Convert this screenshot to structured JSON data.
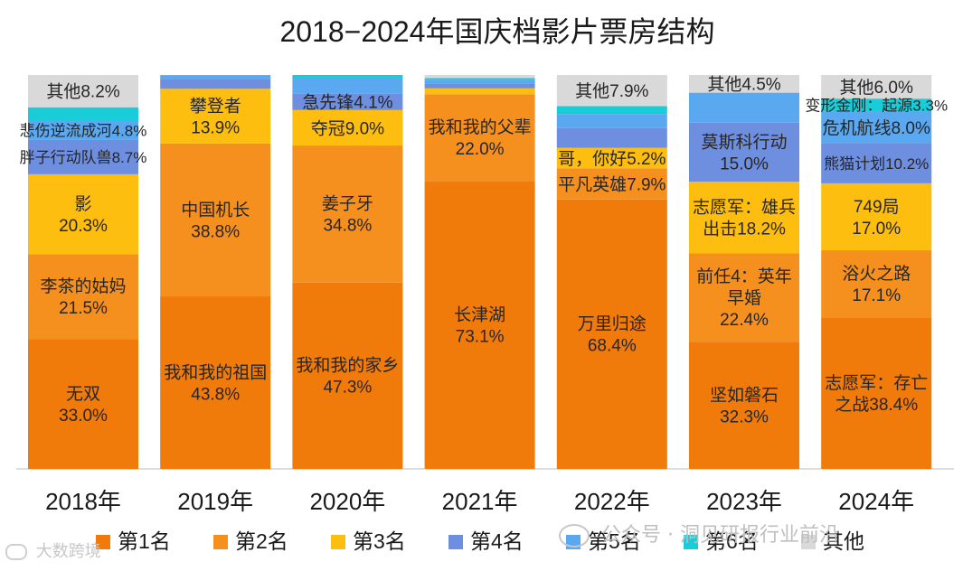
{
  "chart_data": {
    "type": "bar",
    "stacked": true,
    "title": "2018−2024年国庆档影片票房结构",
    "xlabel": "",
    "ylabel": "",
    "ylim": [
      0,
      100
    ],
    "categories": [
      "2018年",
      "2019年",
      "2020年",
      "2021年",
      "2022年",
      "2023年",
      "2024年"
    ],
    "legend_position": "bottom",
    "series": [
      {
        "name": "第1名",
        "color": "#F07A0A",
        "values": [
          33.0,
          43.8,
          47.3,
          73.1,
          68.4,
          32.3,
          38.4
        ]
      },
      {
        "name": "第2名",
        "color": "#F5901E",
        "values": [
          21.5,
          38.8,
          34.8,
          22.0,
          7.9,
          22.4,
          17.1
        ]
      },
      {
        "name": "第3名",
        "color": "#FDBE10",
        "values": [
          20.3,
          13.9,
          9.0,
          1.5,
          5.2,
          18.2,
          17.0
        ]
      },
      {
        "name": "第4名",
        "color": "#6E8EDF",
        "values": [
          8.7,
          2.5,
          4.1,
          1.2,
          5.0,
          15.0,
          10.2
        ]
      },
      {
        "name": "第5名",
        "color": "#5AA9F0",
        "values": [
          4.8,
          0.8,
          4.0,
          1.0,
          3.6,
          7.6,
          8.0
        ]
      },
      {
        "name": "第6名",
        "color": "#18CCD8",
        "values": [
          3.5,
          0.2,
          0.8,
          0.4,
          2.0,
          0.0,
          3.3
        ]
      },
      {
        "name": "其他",
        "color": "#D9D9D9",
        "values": [
          8.2,
          0.0,
          0.0,
          0.8,
          7.9,
          4.5,
          6.0
        ]
      }
    ],
    "data_labels": [
      [
        [
          "无双",
          "33.0%"
        ],
        [
          "李茶的姑妈",
          "21.5%"
        ],
        [
          "影",
          "20.3%"
        ],
        [
          "胖子行动队兽8.7%"
        ],
        [
          "悲伤逆流成河4.8%"
        ],
        [],
        [
          "其他8.2%"
        ]
      ],
      [
        [
          "我和我的祖国",
          "43.8%"
        ],
        [
          "中国机长",
          "38.8%"
        ],
        [
          "攀登者",
          "13.9%"
        ],
        [],
        [],
        [],
        []
      ],
      [
        [
          "我和我的家乡",
          "47.3%"
        ],
        [
          "姜子牙",
          "34.8%"
        ],
        [
          "夺冠9.0%"
        ],
        [
          "急先锋4.1%"
        ],
        [],
        [],
        []
      ],
      [
        [
          "长津湖",
          "73.1%"
        ],
        [
          "我和我的父辈",
          "22.0%"
        ],
        [],
        [],
        [],
        [],
        []
      ],
      [
        [
          "万里归途",
          "68.4%"
        ],
        [
          "平凡英雄7.9%"
        ],
        [
          "哥，你好5.2%"
        ],
        [],
        [],
        [],
        [
          "其他7.9%"
        ]
      ],
      [
        [
          "坚如磐石",
          "32.3%"
        ],
        [
          "前任4：英年",
          "早婚",
          "22.4%"
        ],
        [
          "志愿军：雄兵",
          "出击18.2%"
        ],
        [
          "莫斯科行动",
          "15.0%"
        ],
        [],
        [],
        [
          "其他4.5%"
        ]
      ],
      [
        [
          "志愿军：存亡",
          "之战38.4%"
        ],
        [
          "浴火之路",
          "17.1%"
        ],
        [
          "749局",
          "17.0%"
        ],
        [
          "熊猫计划10.2%"
        ],
        [
          "危机航线8.0%"
        ],
        [
          "变形金刚：起源3.3%"
        ],
        [
          "其他6.0%"
        ]
      ]
    ]
  },
  "watermarks": {
    "wechat": "公众号 · 洞见研报行业前沿",
    "brand": "大数跨境"
  }
}
